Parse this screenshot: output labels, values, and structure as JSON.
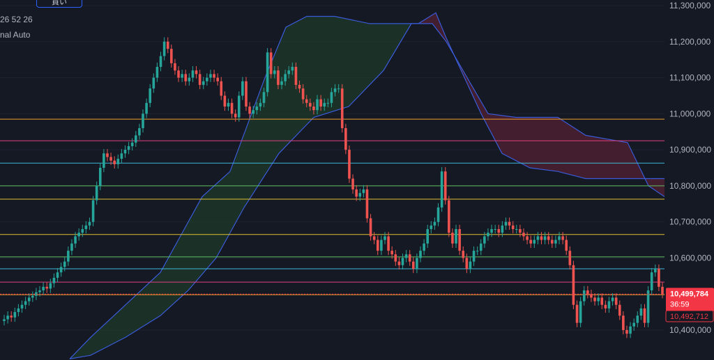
{
  "toolbar": {
    "buy_label": "買い"
  },
  "legend": {
    "values": "26 52 26",
    "mode": "nal Auto"
  },
  "colors": {
    "background": "#151924",
    "up": "#26a69a",
    "down": "#ef5350",
    "cloud_line": "#3a5bd9",
    "cloud_bull_fill": "#1e3a2a",
    "cloud_bear_fill": "#4a2030",
    "price_label_bg": "#f23645"
  },
  "chart_data": {
    "type": "candlestick",
    "y_axis": {
      "range": [
        10330000,
        11310000
      ],
      "tick_labels": [
        "11,300,000",
        "11,200,000",
        "11,100,000",
        "11,000,000",
        "10,900,000",
        "10,800,000",
        "10,700,000",
        "10,600,000",
        "10,500,000",
        "10,400,000"
      ],
      "ticks": [
        11300000,
        11200000,
        11100000,
        11000000,
        10900000,
        10800000,
        10700000,
        10600000,
        10500000,
        10400000
      ]
    },
    "current_price": {
      "label": "10,499,784",
      "value": 10499784,
      "countdown": "36:59"
    },
    "secondary_price": {
      "label": "10,492,712",
      "value": 10492712
    },
    "horizontal_levels": [
      {
        "value": 10985000,
        "color": "#f0a030"
      },
      {
        "value": 10925000,
        "color": "#e04080"
      },
      {
        "value": 10863000,
        "color": "#40b8d8"
      },
      {
        "value": 10800000,
        "color": "#60c060"
      },
      {
        "value": 10763000,
        "color": "#e0c030"
      },
      {
        "value": 10665000,
        "color": "#e0c030"
      },
      {
        "value": 10603000,
        "color": "#60c060"
      },
      {
        "value": 10570000,
        "color": "#40b8d8"
      },
      {
        "value": 10533000,
        "color": "#e04080"
      },
      {
        "value": 10498000,
        "color": "#f0a030"
      }
    ],
    "candles_close": [
      10430,
      10440,
      10435,
      10450,
      10460,
      10470,
      10480,
      10490,
      10495,
      10505,
      10510,
      10520,
      10515,
      10530,
      10545,
      10560,
      10575,
      10590,
      10620,
      10640,
      10660,
      10670,
      10680,
      10690,
      10700,
      10760,
      10800,
      10850,
      10890,
      10880,
      10870,
      10860,
      10875,
      10890,
      10900,
      10910,
      10920,
      10940,
      10960,
      11000,
      11030,
      11070,
      11100,
      11130,
      11160,
      11200,
      11180,
      11140,
      11120,
      11100,
      11110,
      11090,
      11100,
      11120,
      11110,
      11080,
      11090,
      11100,
      11110,
      11100,
      11090,
      11050,
      11020,
      11030,
      11000,
      10990,
      11050,
      11090,
      11020,
      11000,
      11010,
      11020,
      11030,
      11060,
      11170,
      11110,
      11120,
      11080,
      11090,
      11110,
      11120,
      11130,
      11080,
      11070,
      11040,
      11030,
      11020,
      11010,
      11040,
      11020,
      11030,
      11030,
      11060,
      11070,
      11070,
      10960,
      10900,
      10820,
      10790,
      10770,
      10780,
      10790,
      10710,
      10660,
      10650,
      10620,
      10650,
      10660,
      10620,
      10610,
      10590,
      10580,
      10600,
      10610,
      10590,
      10570,
      10600,
      10620,
      10640,
      10680,
      10690,
      10700,
      10740,
      10840,
      10760,
      10670,
      10640,
      10680,
      10620,
      10600,
      10570,
      10590,
      10620,
      10620,
      10640,
      10660,
      10670,
      10680,
      10680,
      10670,
      10690,
      10700,
      10690,
      10680,
      10680,
      10670,
      10660,
      10650,
      10640,
      10650,
      10660,
      10650,
      10660,
      10650,
      10640,
      10650,
      10660,
      10650,
      10620,
      10580,
      10470,
      10420,
      10480,
      10510,
      10500,
      10490,
      10480,
      10490,
      10470,
      10460,
      10480,
      10490,
      10470,
      10440,
      10400,
      10390,
      10410,
      10420,
      10440,
      10460,
      10420,
      10510,
      10560,
      10570,
      10520,
      10500
    ]
  }
}
